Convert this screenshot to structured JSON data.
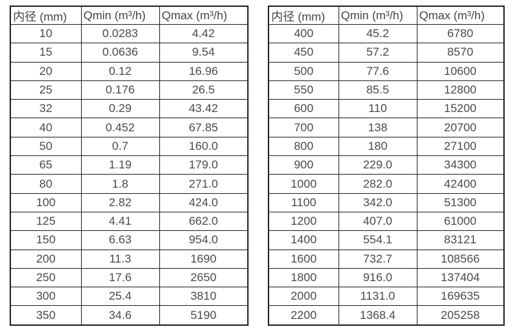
{
  "colors": {
    "background": "#ffffff",
    "border": "#262626",
    "text": "#4a4a4a"
  },
  "chart_data": [
    {
      "type": "table",
      "columns": [
        "内径 (mm)",
        "Qmin (m³/h)",
        "Qmax (m³/h)"
      ],
      "rows": [
        [
          "10",
          "0.0283",
          "4.42"
        ],
        [
          "15",
          "0.0636",
          "9.54"
        ],
        [
          "20",
          "0.12",
          "16.96"
        ],
        [
          "25",
          "0.176",
          "26.5"
        ],
        [
          "32",
          "0.29",
          "43.42"
        ],
        [
          "40",
          "0.452",
          "67.85"
        ],
        [
          "50",
          "0.7",
          "160.0"
        ],
        [
          "65",
          "1.19",
          "179.0"
        ],
        [
          "80",
          "1.8",
          "271.0"
        ],
        [
          "100",
          "2.82",
          "424.0"
        ],
        [
          "125",
          "4.41",
          "662.0"
        ],
        [
          "150",
          "6.63",
          "954.0"
        ],
        [
          "200",
          "11.3",
          "1690"
        ],
        [
          "250",
          "17.6",
          "2650"
        ],
        [
          "300",
          "25.4",
          "3810"
        ],
        [
          "350",
          "34.6",
          "5190"
        ]
      ]
    },
    {
      "type": "table",
      "columns": [
        "内径 (mm)",
        "Qmin (m³/h)",
        "Qmax (m³/h)"
      ],
      "rows": [
        [
          "400",
          "45.2",
          "6780"
        ],
        [
          "450",
          "57.2",
          "8570"
        ],
        [
          "500",
          "77.6",
          "10600"
        ],
        [
          "550",
          "85.5",
          "12800"
        ],
        [
          "600",
          "110",
          "15200"
        ],
        [
          "700",
          "138",
          "20700"
        ],
        [
          "800",
          "180",
          "27100"
        ],
        [
          "900",
          "229.0",
          "34300"
        ],
        [
          "1000",
          "282.0",
          "42400"
        ],
        [
          "1100",
          "342.0",
          "51300"
        ],
        [
          "1200",
          "407.0",
          "61000"
        ],
        [
          "1400",
          "554.1",
          "83121"
        ],
        [
          "1600",
          "732.7",
          "108566"
        ],
        [
          "1800",
          "916.0",
          "137404"
        ],
        [
          "2000",
          "1131.0",
          "169635"
        ],
        [
          "2200",
          "1368.4",
          "205258"
        ]
      ]
    }
  ]
}
